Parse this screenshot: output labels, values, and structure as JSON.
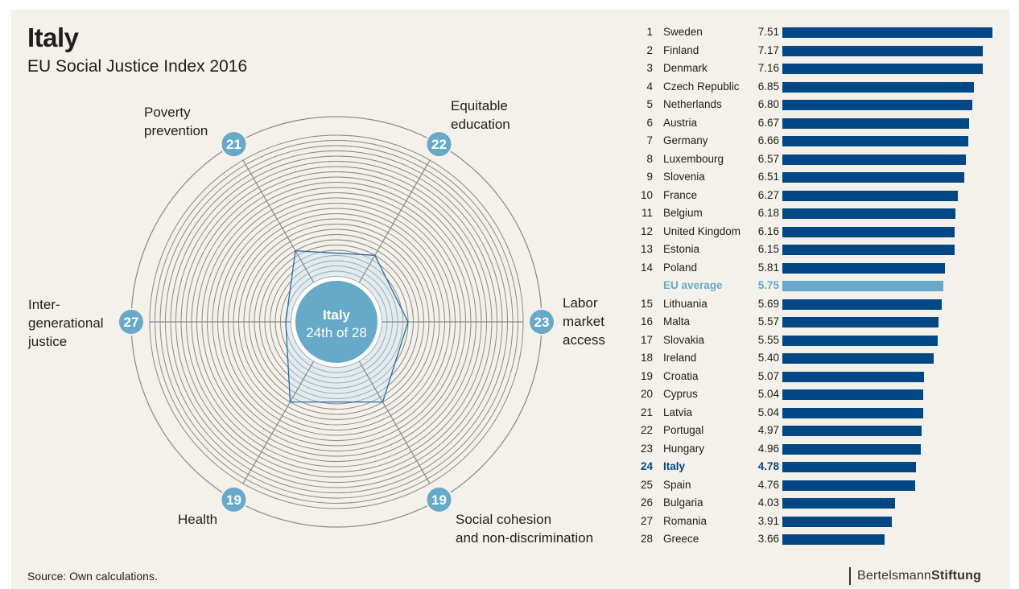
{
  "header": {
    "title": "Italy",
    "subtitle": "EU Social Justice Index 2016"
  },
  "footer": {
    "source": "Source: Own calculations.",
    "brand_regular": "Bertelsmann",
    "brand_bold": "Stiftung"
  },
  "colors": {
    "background": "#f4f1ea",
    "bar": "#004785",
    "eu_average": "#67a9c9",
    "badge": "#67a9c9",
    "polygon_fill": "#dbe9f2",
    "polygon_stroke": "#2a6aa5",
    "grid": "#8a8a8a"
  },
  "chart_data": [
    {
      "type": "radar",
      "title": "Italy — dimension ranks",
      "center_label": {
        "name": "Italy",
        "rank_text": "24th of 28"
      },
      "scale": {
        "min_rank": 1,
        "max_rank": 28,
        "note": "rank 1 at outer ring, rank 28 at center"
      },
      "axes": [
        {
          "label_lines": [
            "Poverty",
            "prevention"
          ],
          "rank": 21
        },
        {
          "label_lines": [
            "Equitable",
            "education"
          ],
          "rank": 22
        },
        {
          "label_lines": [
            "Labor",
            "market",
            "access"
          ],
          "rank": 23
        },
        {
          "label_lines": [
            "Social cohesion",
            "and non-discrimination"
          ],
          "rank": 19
        },
        {
          "label_lines": [
            "Health"
          ],
          "rank": 19
        },
        {
          "label_lines": [
            "Inter-",
            "generational",
            "justice"
          ],
          "rank": 27
        }
      ]
    },
    {
      "type": "bar",
      "orientation": "horizontal",
      "title": "EU Social Justice Index 2016 ranking",
      "xlim": [
        0,
        7.51
      ],
      "rows": [
        {
          "rank": "1",
          "name": "Sweden",
          "value": 7.51
        },
        {
          "rank": "2",
          "name": "Finland",
          "value": 7.17
        },
        {
          "rank": "3",
          "name": "Denmark",
          "value": 7.16
        },
        {
          "rank": "4",
          "name": "Czech Republic",
          "value": 6.85
        },
        {
          "rank": "5",
          "name": "Netherlands",
          "value": 6.8
        },
        {
          "rank": "6",
          "name": "Austria",
          "value": 6.67
        },
        {
          "rank": "7",
          "name": "Germany",
          "value": 6.66
        },
        {
          "rank": "8",
          "name": "Luxembourg",
          "value": 6.57
        },
        {
          "rank": "9",
          "name": "Slovenia",
          "value": 6.51
        },
        {
          "rank": "10",
          "name": "France",
          "value": 6.27
        },
        {
          "rank": "11",
          "name": "Belgium",
          "value": 6.18
        },
        {
          "rank": "12",
          "name": "United Kingdom",
          "value": 6.16
        },
        {
          "rank": "13",
          "name": "Estonia",
          "value": 6.15
        },
        {
          "rank": "14",
          "name": "Poland",
          "value": 5.81
        },
        {
          "rank": "",
          "name": "EU average",
          "value": 5.75,
          "style": "avg"
        },
        {
          "rank": "15",
          "name": "Lithuania",
          "value": 5.69
        },
        {
          "rank": "16",
          "name": "Malta",
          "value": 5.57
        },
        {
          "rank": "17",
          "name": "Slovakia",
          "value": 5.55
        },
        {
          "rank": "18",
          "name": "Ireland",
          "value": 5.4
        },
        {
          "rank": "19",
          "name": "Croatia",
          "value": 5.07
        },
        {
          "rank": "20",
          "name": "Cyprus",
          "value": 5.04
        },
        {
          "rank": "21",
          "name": "Latvia",
          "value": 5.04
        },
        {
          "rank": "22",
          "name": "Portugal",
          "value": 4.97
        },
        {
          "rank": "23",
          "name": "Hungary",
          "value": 4.96
        },
        {
          "rank": "24",
          "name": "Italy",
          "value": 4.78,
          "style": "hl"
        },
        {
          "rank": "25",
          "name": "Spain",
          "value": 4.76
        },
        {
          "rank": "26",
          "name": "Bulgaria",
          "value": 4.03
        },
        {
          "rank": "27",
          "name": "Romania",
          "value": 3.91
        },
        {
          "rank": "28",
          "name": "Greece",
          "value": 3.66
        }
      ]
    }
  ]
}
